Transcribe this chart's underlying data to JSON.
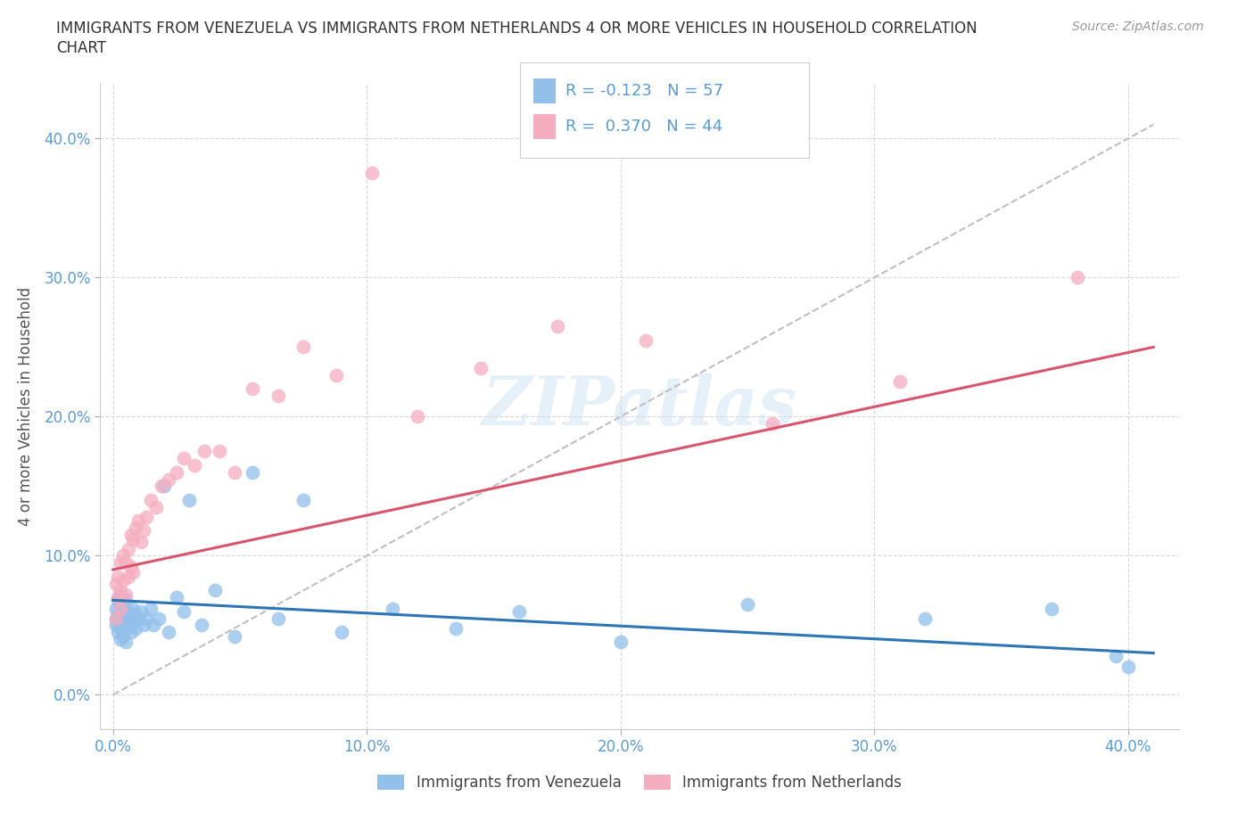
{
  "title_line1": "IMMIGRANTS FROM VENEZUELA VS IMMIGRANTS FROM NETHERLANDS 4 OR MORE VEHICLES IN HOUSEHOLD CORRELATION",
  "title_line2": "CHART",
  "source": "Source: ZipAtlas.com",
  "ylabel": "4 or more Vehicles in Household",
  "xlim": [
    -0.005,
    0.42
  ],
  "ylim": [
    -0.025,
    0.44
  ],
  "xticks": [
    0.0,
    0.1,
    0.2,
    0.3,
    0.4
  ],
  "yticks": [
    0.0,
    0.1,
    0.2,
    0.3,
    0.4
  ],
  "xticklabels": [
    "0.0%",
    "10.0%",
    "20.0%",
    "30.0%",
    "40.0%"
  ],
  "yticklabels": [
    "0.0%",
    "10.0%",
    "20.0%",
    "30.0%",
    "40.0%"
  ],
  "grid_color": "#d0d0d0",
  "watermark": "ZIPatlas",
  "blue_color": "#92c0ea",
  "pink_color": "#f5adc0",
  "trendline_blue_color": "#2e75b6",
  "trendline_pink_color": "#d9556e",
  "trendline_gray_color": "#c0c0c0",
  "legend_label_blue": "Immigrants from Venezuela",
  "legend_label_pink": "Immigrants from Netherlands",
  "tick_color": "#5b9bd5",
  "venezuela_x": [
    0.001,
    0.001,
    0.001,
    0.002,
    0.002,
    0.002,
    0.002,
    0.003,
    0.003,
    0.003,
    0.003,
    0.003,
    0.004,
    0.004,
    0.004,
    0.004,
    0.005,
    0.005,
    0.005,
    0.005,
    0.005,
    0.006,
    0.006,
    0.007,
    0.007,
    0.008,
    0.008,
    0.009,
    0.009,
    0.01,
    0.011,
    0.012,
    0.013,
    0.015,
    0.016,
    0.018,
    0.02,
    0.022,
    0.025,
    0.028,
    0.03,
    0.035,
    0.04,
    0.048,
    0.055,
    0.065,
    0.075,
    0.09,
    0.11,
    0.135,
    0.16,
    0.2,
    0.25,
    0.32,
    0.37,
    0.395,
    0.4
  ],
  "venezuela_y": [
    0.055,
    0.062,
    0.05,
    0.068,
    0.058,
    0.052,
    0.045,
    0.072,
    0.06,
    0.058,
    0.048,
    0.04,
    0.065,
    0.055,
    0.05,
    0.042,
    0.068,
    0.058,
    0.052,
    0.048,
    0.038,
    0.06,
    0.05,
    0.055,
    0.045,
    0.062,
    0.052,
    0.058,
    0.048,
    0.055,
    0.06,
    0.05,
    0.055,
    0.062,
    0.05,
    0.055,
    0.15,
    0.045,
    0.07,
    0.06,
    0.14,
    0.05,
    0.075,
    0.042,
    0.16,
    0.055,
    0.14,
    0.045,
    0.062,
    0.048,
    0.06,
    0.038,
    0.065,
    0.055,
    0.062,
    0.028,
    0.02
  ],
  "netherlands_x": [
    0.001,
    0.001,
    0.002,
    0.002,
    0.003,
    0.003,
    0.003,
    0.004,
    0.004,
    0.005,
    0.005,
    0.006,
    0.006,
    0.007,
    0.007,
    0.008,
    0.008,
    0.009,
    0.01,
    0.011,
    0.012,
    0.013,
    0.015,
    0.017,
    0.019,
    0.022,
    0.025,
    0.028,
    0.032,
    0.036,
    0.042,
    0.048,
    0.055,
    0.065,
    0.075,
    0.088,
    0.102,
    0.12,
    0.145,
    0.175,
    0.21,
    0.26,
    0.31,
    0.38
  ],
  "netherlands_y": [
    0.08,
    0.055,
    0.085,
    0.07,
    0.095,
    0.075,
    0.062,
    0.1,
    0.082,
    0.095,
    0.072,
    0.105,
    0.085,
    0.115,
    0.092,
    0.112,
    0.088,
    0.12,
    0.125,
    0.11,
    0.118,
    0.128,
    0.14,
    0.135,
    0.15,
    0.155,
    0.16,
    0.17,
    0.165,
    0.175,
    0.175,
    0.16,
    0.22,
    0.215,
    0.25,
    0.23,
    0.375,
    0.2,
    0.235,
    0.265,
    0.255,
    0.195,
    0.225,
    0.3
  ],
  "venezuela_trend_x0": 0.0,
  "venezuela_trend_x1": 0.41,
  "venezuela_trend_y0": 0.068,
  "venezuela_trend_y1": 0.03,
  "netherlands_trend_x0": 0.0,
  "netherlands_trend_x1": 0.41,
  "netherlands_trend_y0": 0.09,
  "netherlands_trend_y1": 0.25
}
